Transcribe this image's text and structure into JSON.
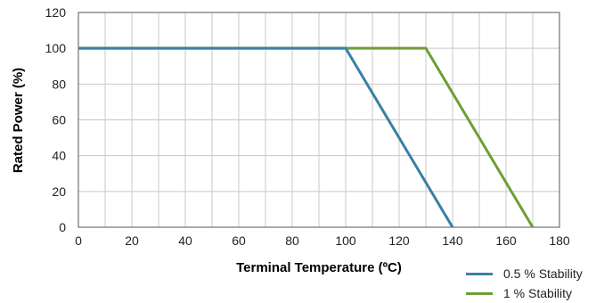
{
  "chart_data": {
    "type": "line",
    "xlabel": "Terminal Temperature (ºC)",
    "ylabel": "Rated Power (%)",
    "xlim": [
      0,
      180
    ],
    "ylim": [
      0,
      120
    ],
    "xticks": [
      0,
      20,
      40,
      60,
      80,
      100,
      120,
      140,
      160,
      180
    ],
    "yticks": [
      0,
      20,
      40,
      60,
      80,
      100,
      120
    ],
    "x_minor_step": 10,
    "grid": true,
    "legend_position": "bottom-right",
    "series": [
      {
        "name": "0.5 % Stability",
        "color": "#3a7fa6",
        "x": [
          0,
          100,
          140
        ],
        "y": [
          100,
          100,
          0
        ]
      },
      {
        "name": "1 % Stability",
        "color": "#6e9e35",
        "x": [
          0,
          130,
          170
        ],
        "y": [
          100,
          100,
          0
        ]
      }
    ]
  }
}
